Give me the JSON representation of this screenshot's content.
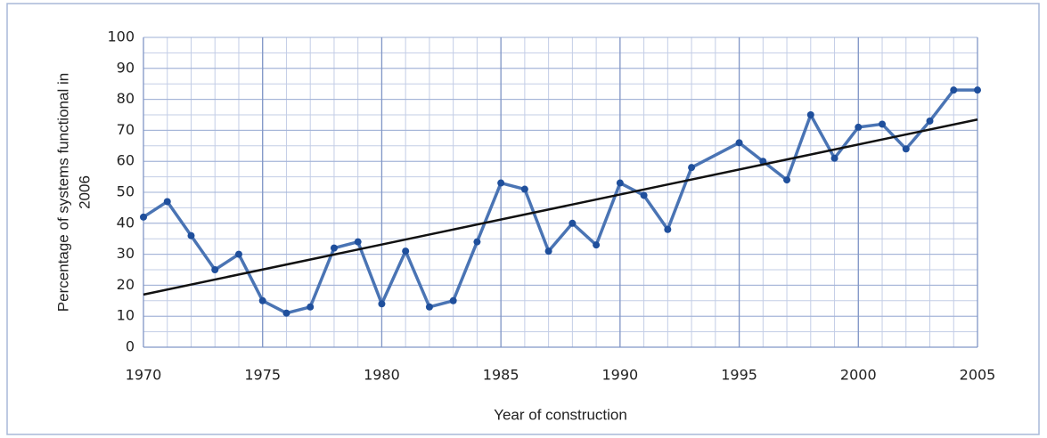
{
  "chart_data": {
    "type": "line",
    "xlabel": "Year of construction",
    "ylabel": [
      "Percentage of systems functional in",
      "2006"
    ],
    "x": [
      1970,
      1971,
      1972,
      1973,
      1974,
      1975,
      1976,
      1977,
      1978,
      1979,
      1980,
      1981,
      1982,
      1983,
      1984,
      1985,
      1986,
      1987,
      1988,
      1989,
      1990,
      1991,
      1992,
      1993,
      1995,
      1996,
      1997,
      1998,
      1999,
      2000,
      2001,
      2002,
      2003,
      2004,
      2005
    ],
    "series": [
      {
        "color": "#4a74b4",
        "marker_color": "#1f4f9c",
        "values": [
          42,
          47,
          36,
          25,
          30,
          15,
          11,
          13,
          32,
          34,
          14,
          31,
          13,
          15,
          34,
          53,
          51,
          31,
          40,
          33,
          53,
          49,
          38,
          58,
          66,
          60,
          54,
          75,
          61,
          71,
          72,
          64,
          73,
          83,
          83
        ]
      }
    ],
    "trend": {
      "x": [
        1970,
        2005
      ],
      "values": [
        17,
        73.5
      ],
      "color": "#111111"
    },
    "xlim": [
      1970,
      2005
    ],
    "ylim": [
      0,
      100
    ],
    "xticks": [
      1970,
      1975,
      1980,
      1985,
      1990,
      1995,
      2000,
      2005
    ],
    "yticks": [
      0,
      10,
      20,
      30,
      40,
      50,
      60,
      70,
      80,
      90,
      100
    ],
    "minor_grid": {
      "x": 1,
      "y": 5
    },
    "grid": true
  }
}
